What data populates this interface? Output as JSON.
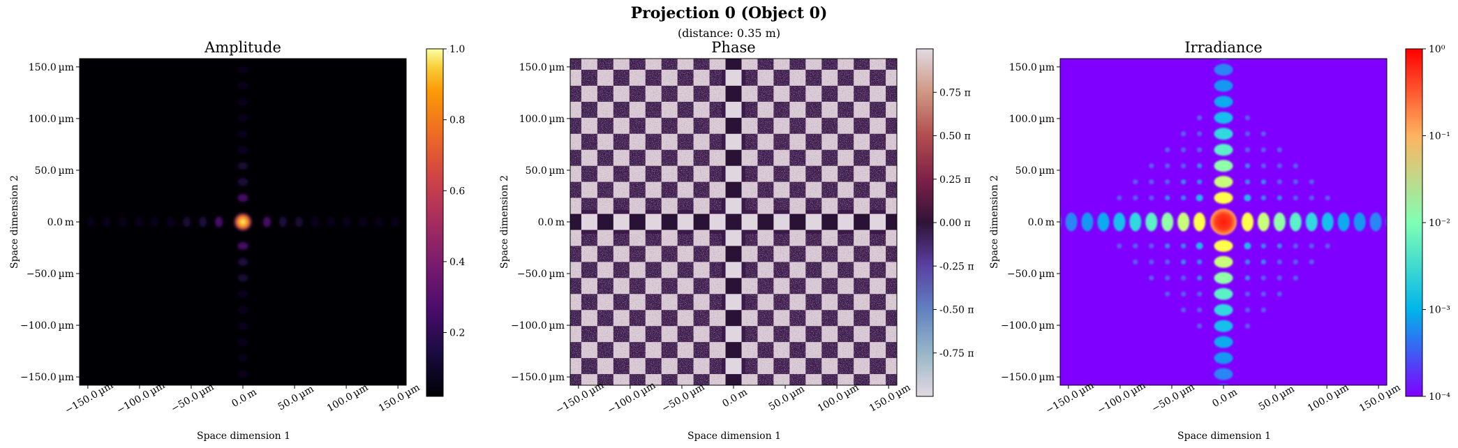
{
  "figure": {
    "title": "Projection 0 (Object 0)",
    "subtitle": "(distance: 0.35 m)"
  },
  "chart_data": [
    {
      "type": "heatmap",
      "title": "Amplitude",
      "xlabel": "Space dimension 1",
      "ylabel": "Space dimension 2",
      "xlim": [
        -158,
        158
      ],
      "ylim": [
        -158,
        158
      ],
      "xticks": [
        -150,
        -100,
        -50,
        0,
        50,
        100,
        150
      ],
      "xtick_labels": [
        "−150.0 µm",
        "−100.0 µm",
        "−50.0 µm",
        "0.0 m",
        "50.0 µm",
        "100.0 µm",
        "150.0 µm"
      ],
      "yticks": [
        150,
        100,
        50,
        0,
        -50,
        -100,
        -150
      ],
      "ytick_labels": [
        "150.0 µm",
        "100.0 µm",
        "50.0 µm",
        "0.0 m",
        "−50.0 µm",
        "−100.0 µm",
        "−150.0 µm"
      ],
      "colormap": "inferno",
      "colorbar": {
        "scale": "linear",
        "range": [
          0.02,
          1.0
        ],
        "ticks": [
          0.2,
          0.4,
          0.6,
          0.8,
          1.0
        ],
        "tick_labels": [
          "0.2",
          "0.4",
          "0.6",
          "0.8",
          "1.0"
        ]
      },
      "pattern": "sinc-cross, peak 1.0 at center, lobe period about 15.5 µm"
    },
    {
      "type": "heatmap",
      "title": "Phase",
      "xlabel": "Space dimension 1",
      "ylabel": "Space dimension 2",
      "xlim": [
        -158,
        158
      ],
      "ylim": [
        -158,
        158
      ],
      "xticks": [
        -150,
        -100,
        -50,
        0,
        50,
        100,
        150
      ],
      "xtick_labels": [
        "−150.0 µm",
        "−100.0 µm",
        "−50.0 µm",
        "0.0 m",
        "50.0 µm",
        "100.0 µm",
        "150.0 µm"
      ],
      "yticks": [
        150,
        100,
        50,
        0,
        -50,
        -100,
        -150
      ],
      "ytick_labels": [
        "150.0 µm",
        "100.0 µm",
        "50.0 µm",
        "0.0 m",
        "−50.0 µm",
        "−100.0 µm",
        "−150.0 µm"
      ],
      "colormap": "twilight",
      "colorbar": {
        "scale": "linear",
        "range": [
          -1,
          1
        ],
        "ticks": [
          0.75,
          0.5,
          0.25,
          0,
          -0.25,
          -0.5,
          -0.75
        ],
        "tick_labels": [
          "0.75 π",
          "0.50 π",
          "0.25 π",
          "0.00 π",
          "-0.25 π",
          "-0.50 π",
          "-0.75 π"
        ]
      },
      "pattern": "checkerboard of 0 / ±π phase with noise, cell period about 15.5 µm"
    },
    {
      "type": "heatmap",
      "title": "Irradiance",
      "xlabel": "Space dimension 1",
      "ylabel": "Space dimension 2",
      "xlim": [
        -158,
        158
      ],
      "ylim": [
        -158,
        158
      ],
      "xticks": [
        -150,
        -100,
        -50,
        0,
        50,
        100,
        150
      ],
      "xtick_labels": [
        "−150.0 µm",
        "−100.0 µm",
        "−50.0 µm",
        "0.0 m",
        "50.0 µm",
        "100.0 µm",
        "150.0 µm"
      ],
      "yticks": [
        150,
        100,
        50,
        0,
        -50,
        -100,
        -150
      ],
      "ytick_labels": [
        "150.0 µm",
        "100.0 µm",
        "50.0 µm",
        "0.0 m",
        "−50.0 µm",
        "−100.0 µm",
        "−150.0 µm"
      ],
      "colormap": "rainbow",
      "colorbar": {
        "scale": "log",
        "range": [
          0.0001,
          1
        ],
        "ticks": [
          1,
          0.1,
          0.01,
          0.001,
          0.0001
        ],
        "tick_labels": [
          "10⁰",
          "10⁻¹",
          "10⁻²",
          "10⁻³",
          "10⁻⁴"
        ]
      },
      "pattern": "sinc² cross on log scale, peak 1 at center"
    }
  ]
}
